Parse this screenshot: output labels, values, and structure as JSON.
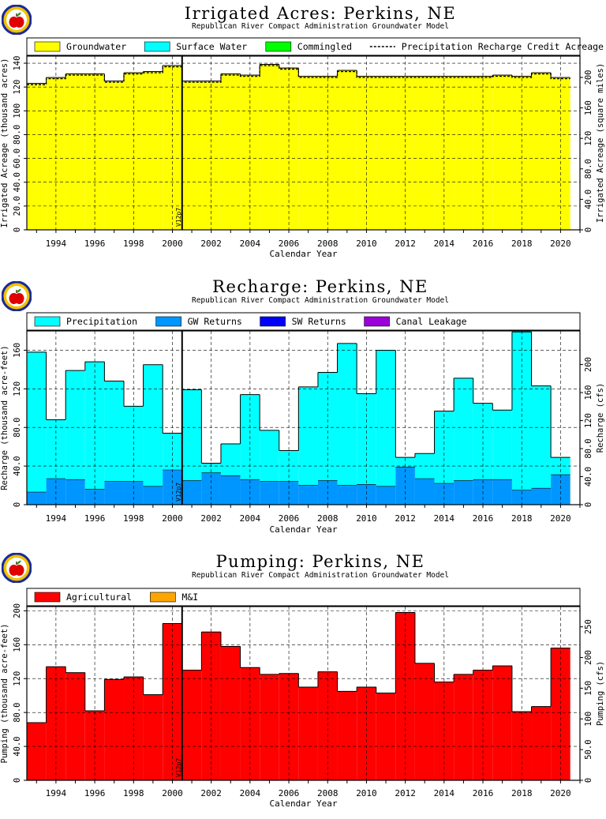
{
  "chart_data": [
    {
      "type": "bar",
      "title": "Irrigated Acres: Perkins, NE",
      "subtitle": "Republican River Compact Administration Groundwater Model",
      "xlabel": "Calendar Year",
      "ylabel": "Irrigated Acreage (thousand acres)",
      "ylabel_right": "Irrigated Acreage (square miles)",
      "stacked": true,
      "x_start": 1992.5,
      "x_end": 2021,
      "x_ticks": [
        "1994",
        "1996",
        "1998",
        "2000",
        "2002",
        "2004",
        "2006",
        "2008",
        "2010",
        "2012",
        "2014",
        "2016",
        "2018",
        "2020"
      ],
      "ylim": [
        0,
        146
      ],
      "y_ticks": [
        "0",
        "20.0",
        "40.0",
        "60.0",
        "80.0",
        "100",
        "120",
        "140"
      ],
      "ylim_right": [
        0,
        228
      ],
      "y_ticks_right": [
        "0",
        "40.0",
        "80.0",
        "120",
        "160",
        "200"
      ],
      "annotation": "V12p7",
      "annotation_x": 2000.5,
      "legend": [
        "Groundwater",
        "Surface Water",
        "Commingled",
        "Precipitation Recharge Credit Acreage"
      ],
      "categories": [
        "1993",
        "1994",
        "1995",
        "1996",
        "1997",
        "1998",
        "1999",
        "2000",
        "2001",
        "2002",
        "2003",
        "2004",
        "2005",
        "2006",
        "2007",
        "2008",
        "2009",
        "2010",
        "2011",
        "2012",
        "2013",
        "2014",
        "2015",
        "2016",
        "2017",
        "2018",
        "2019",
        "2020"
      ],
      "series": [
        {
          "name": "Groundwater",
          "color": "#ffff00",
          "values": [
            123,
            128,
            131,
            131,
            125,
            132,
            133,
            138,
            125,
            125,
            131,
            130,
            139,
            136,
            129,
            129,
            134,
            129,
            129,
            129,
            129,
            129,
            129,
            129,
            130,
            129,
            132,
            128
          ]
        },
        {
          "name": "Surface Water",
          "color": "#00ffff",
          "values": [
            0,
            0,
            0,
            0,
            0,
            0,
            0,
            0,
            0,
            0,
            0,
            0,
            0,
            0,
            0,
            0,
            0,
            0,
            0,
            0,
            0,
            0,
            0,
            0,
            0,
            0,
            0,
            0
          ]
        },
        {
          "name": "Commingled",
          "color": "#00ff00",
          "values": [
            0,
            0,
            0,
            0,
            0,
            0,
            0,
            0,
            0,
            0,
            0,
            0,
            0,
            0,
            0,
            0,
            0,
            0,
            0,
            0,
            0,
            0,
            0,
            0,
            0,
            0,
            0,
            0
          ]
        }
      ],
      "line": {
        "name": "Precipitation Recharge Credit Acreage",
        "values": [
          122,
          127,
          130,
          130,
          124,
          131,
          132,
          137,
          124,
          124,
          130,
          129,
          138,
          135,
          128,
          128,
          133,
          128,
          128,
          128,
          128,
          128,
          128,
          128,
          129,
          128,
          131,
          127
        ]
      }
    },
    {
      "type": "bar",
      "title": "Recharge: Perkins, NE",
      "subtitle": "Republican River Compact Administration Groundwater Model",
      "xlabel": "Calendar Year",
      "ylabel": "Recharge (thousand acre-feet)",
      "ylabel_right": "Recharge (cfs)",
      "stacked": true,
      "x_start": 1992.5,
      "x_end": 2021,
      "x_ticks": [
        "1994",
        "1996",
        "1998",
        "2000",
        "2002",
        "2004",
        "2006",
        "2008",
        "2010",
        "2012",
        "2014",
        "2016",
        "2018",
        "2020"
      ],
      "ylim": [
        0,
        180
      ],
      "y_ticks": [
        "0",
        "40.0",
        "80.0",
        "120",
        "160"
      ],
      "ylim_right": [
        0,
        248
      ],
      "y_ticks_right": [
        "0",
        "40.0",
        "80.0",
        "120",
        "160",
        "200"
      ],
      "annotation": "V12p7",
      "annotation_x": 2000.5,
      "legend": [
        "Precipitation",
        "GW Returns",
        "SW Returns",
        "Canal Leakage"
      ],
      "categories": [
        "1993",
        "1994",
        "1995",
        "1996",
        "1997",
        "1998",
        "1999",
        "2000",
        "2001",
        "2002",
        "2003",
        "2004",
        "2005",
        "2006",
        "2007",
        "2008",
        "2009",
        "2010",
        "2011",
        "2012",
        "2013",
        "2014",
        "2015",
        "2016",
        "2017",
        "2018",
        "2019",
        "2020"
      ],
      "series": [
        {
          "name": "GW Returns",
          "color": "#0096ff",
          "values": [
            13,
            27,
            26,
            16,
            24,
            24,
            19,
            36,
            25,
            33,
            30,
            26,
            24,
            24,
            20,
            25,
            20,
            21,
            19,
            39,
            27,
            22,
            25,
            26,
            26,
            15,
            17,
            31
          ]
        },
        {
          "name": "SW Returns",
          "color": "#0000ff",
          "values": [
            0,
            0,
            0,
            0,
            0,
            0,
            0,
            0,
            0,
            0,
            0,
            0,
            0,
            0,
            0,
            0,
            0,
            0,
            0,
            0,
            0,
            0,
            0,
            0,
            0,
            0,
            0,
            0
          ]
        },
        {
          "name": "Canal Leakage",
          "color": "#9a00d9",
          "values": [
            0,
            0,
            0,
            0,
            0,
            0,
            0,
            0,
            0,
            0,
            0,
            0,
            0,
            0,
            0,
            0,
            0,
            0,
            0,
            0,
            0,
            0,
            0,
            0,
            0,
            0,
            0,
            0
          ]
        },
        {
          "name": "Precipitation",
          "color": "#00ffff",
          "values": [
            145,
            61,
            113,
            132,
            104,
            78,
            126,
            38,
            94,
            10,
            33,
            88,
            53,
            32,
            102,
            112,
            147,
            94,
            141,
            10,
            26,
            75,
            106,
            79,
            72,
            164,
            106,
            18
          ]
        }
      ]
    },
    {
      "type": "bar",
      "title": "Pumping: Perkins, NE",
      "subtitle": "Republican River Compact Administration Groundwater Model",
      "xlabel": "Calendar Year",
      "ylabel": "Pumping (thousand acre-feet)",
      "ylabel_right": "Pumping (cfs)",
      "stacked": true,
      "x_start": 1992.5,
      "x_end": 2021,
      "x_ticks": [
        "1994",
        "1996",
        "1998",
        "2000",
        "2002",
        "2004",
        "2006",
        "2008",
        "2010",
        "2012",
        "2014",
        "2016",
        "2018",
        "2020"
      ],
      "ylim": [
        0,
        205
      ],
      "y_ticks": [
        "0",
        "40.0",
        "80.0",
        "120",
        "160",
        "200"
      ],
      "ylim_right": [
        0,
        283
      ],
      "y_ticks_right": [
        "0",
        "50.0",
        "100",
        "150",
        "200",
        "250"
      ],
      "annotation": "V12p7",
      "annotation_x": 2000.5,
      "legend": [
        "Agricultural",
        "M&I"
      ],
      "categories": [
        "1993",
        "1994",
        "1995",
        "1996",
        "1997",
        "1998",
        "1999",
        "2000",
        "2001",
        "2002",
        "2003",
        "2004",
        "2005",
        "2006",
        "2007",
        "2008",
        "2009",
        "2010",
        "2011",
        "2012",
        "2013",
        "2014",
        "2015",
        "2016",
        "2017",
        "2018",
        "2019",
        "2020"
      ],
      "series": [
        {
          "name": "Agricultural",
          "color": "#ff0000",
          "values": [
            68,
            134,
            127,
            82,
            119,
            122,
            101,
            185,
            130,
            175,
            158,
            133,
            125,
            126,
            110,
            128,
            105,
            110,
            103,
            198,
            138,
            116,
            125,
            130,
            135,
            81,
            87,
            156
          ]
        },
        {
          "name": "M&I",
          "color": "#ffa500",
          "values": [
            0,
            0,
            0,
            0,
            0,
            0,
            0,
            0,
            0,
            0,
            0,
            0,
            0,
            0,
            0,
            0,
            0,
            0,
            0,
            0,
            0,
            0,
            0,
            0,
            0,
            0,
            0,
            0
          ]
        }
      ]
    }
  ]
}
